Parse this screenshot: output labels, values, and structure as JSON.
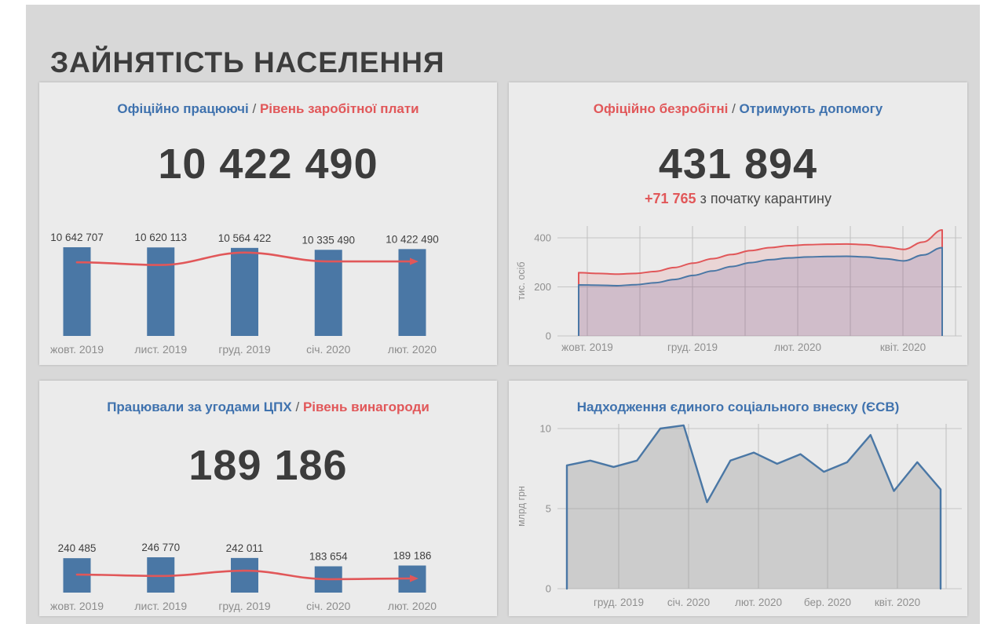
{
  "title": "ЗАЙНЯТІСТЬ НАСЕЛЕННЯ",
  "colors": {
    "blue": "#3f72ae",
    "red": "#e15759",
    "bar": "#4a77a5",
    "dark": "#3c3c3c",
    "axis_text": "#8f8f8f",
    "value_text": "#3f3f3f",
    "grid": "#c6c6c6",
    "panel": "#ebebeb",
    "canvas": "#d8d8d8",
    "area_red": "rgba(225,87,89,0.15)",
    "area_blue": "rgba(104,94,158,0.20)",
    "area_gray": "rgba(145,145,145,0.35)"
  },
  "panels": {
    "employed": {
      "title_left": "Офіційно працюючі",
      "sep": "/",
      "title_right": "Рівень заробітної плати",
      "big_number": "10 422 490",
      "chart_data": {
        "type": "bar",
        "categories": [
          "жовт. 2019",
          "лист. 2019",
          "груд. 2019",
          "січ. 2020",
          "лют. 2020"
        ],
        "values": [
          10642707,
          10620113,
          10564422,
          10335490,
          10422490
        ],
        "value_labels": [
          "10 642 707",
          "10 620 113",
          "10 564 422",
          "10 335 490",
          "10 422 490"
        ],
        "line_name": "Рівень заробітної плати",
        "line_rel": [
          0.83,
          0.8,
          0.94,
          0.84,
          0.84
        ]
      }
    },
    "unemployed": {
      "title_left": "Офіційно безробітні",
      "sep": "/",
      "title_right": "Отримують допомогу",
      "big_number": "431 894",
      "delta": "+71 765",
      "delta_caption": "з початку карантину",
      "chart_data": {
        "type": "area",
        "ylabel": "тис. осіб",
        "yticks": [
          0,
          200,
          400
        ],
        "ylim": [
          0,
          448
        ],
        "x_labels": [
          "жовт. 2019",
          "груд. 2019",
          "лют. 2020",
          "квіт. 2020"
        ],
        "series": [
          {
            "name": "Офіційно безробітні",
            "color": "red",
            "values": [
              258,
              255,
              252,
              255,
              263,
              279,
              297,
              315,
              332,
              348,
              360,
              368,
              372,
              374,
              375,
              372,
              363,
              353,
              383,
              432
            ]
          },
          {
            "name": "Отримують допомогу",
            "color": "blue",
            "values": [
              208,
              207,
              205,
              209,
              217,
              230,
              247,
              265,
              283,
              299,
              311,
              318,
              322,
              324,
              325,
              322,
              315,
              306,
              330,
              360
            ]
          }
        ]
      }
    },
    "cpx": {
      "title_left": "Працювали за угодами ЦПХ",
      "sep": "/",
      "title_right": "Рівень винагороди",
      "big_number": "189 186",
      "chart_data": {
        "type": "bar",
        "categories": [
          "жовт. 2019",
          "лист. 2019",
          "груд. 2019",
          "січ. 2020",
          "лют. 2020"
        ],
        "values": [
          240485,
          246770,
          242011,
          183654,
          189186
        ],
        "value_labels": [
          "240 485",
          "246 770",
          "242 011",
          "183 654",
          "189 186"
        ],
        "line_name": "Рівень винагороди",
        "line_rel": [
          0.51,
          0.47,
          0.62,
          0.38,
          0.4
        ]
      }
    },
    "esv": {
      "title": "Надходження єдиного соціального внеску (ЄСВ)",
      "chart_data": {
        "type": "area",
        "ylabel": "млрд грн",
        "yticks": [
          0,
          5,
          10
        ],
        "ylim": [
          0,
          10.5
        ],
        "x_labels": [
          "груд. 2019",
          "січ. 2020",
          "лют. 2020",
          "бер. 2020",
          "квіт. 2020"
        ],
        "values": [
          7.7,
          8.0,
          7.6,
          8.0,
          10.0,
          10.2,
          5.4,
          8.0,
          8.5,
          7.8,
          8.4,
          7.3,
          7.9,
          9.6,
          6.1,
          7.9,
          6.2
        ]
      }
    }
  }
}
